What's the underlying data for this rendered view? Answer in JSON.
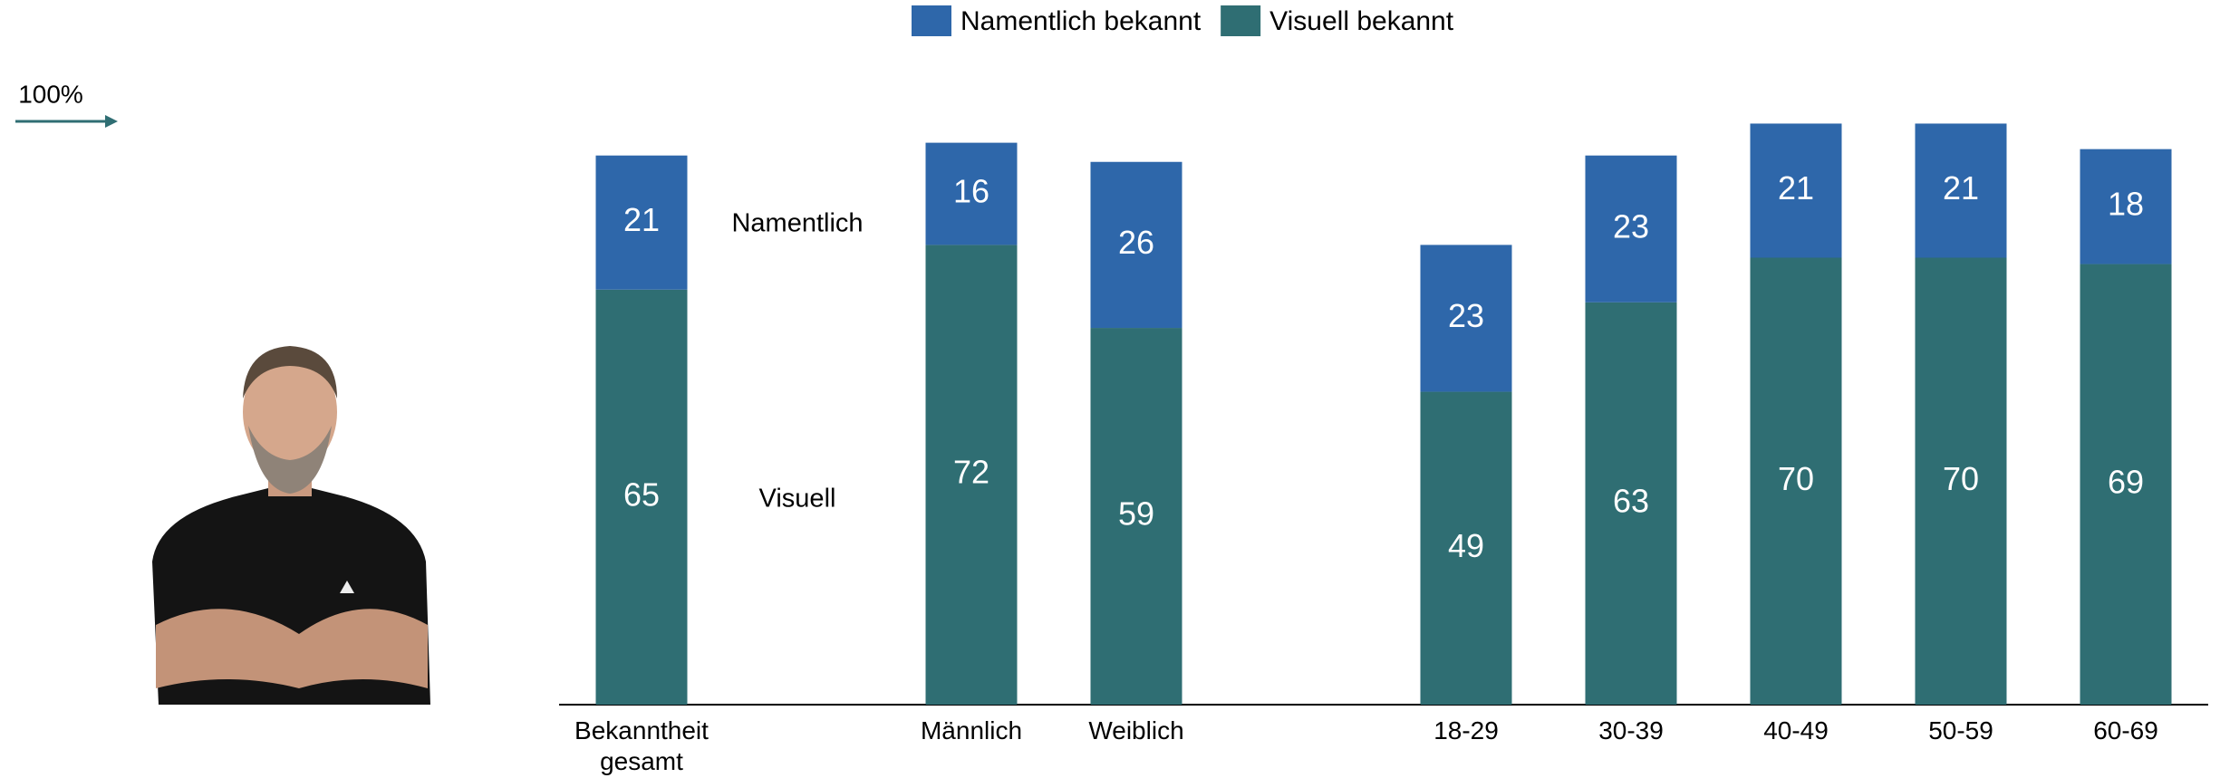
{
  "chart_data": {
    "type": "stacked_bar",
    "categories": [
      "Bekanntheit gesamt",
      null,
      "Männlich",
      "Weiblich",
      null,
      "18-29",
      "30-39",
      "40-49",
      "50-59",
      "60-69"
    ],
    "series": [
      {
        "name": "Visuell bekannt",
        "color": "#2f6e73",
        "values": [
          65,
          null,
          72,
          59,
          null,
          49,
          63,
          70,
          70,
          69
        ]
      },
      {
        "name": "Namentlich bekannt",
        "color": "#2e67aa",
        "values": [
          21,
          null,
          16,
          26,
          null,
          23,
          23,
          21,
          21,
          18
        ]
      }
    ],
    "ylim": [
      0,
      100
    ],
    "annotations": [
      "100%",
      "Namentlich",
      "Visuell"
    ],
    "legend": "top"
  }
}
